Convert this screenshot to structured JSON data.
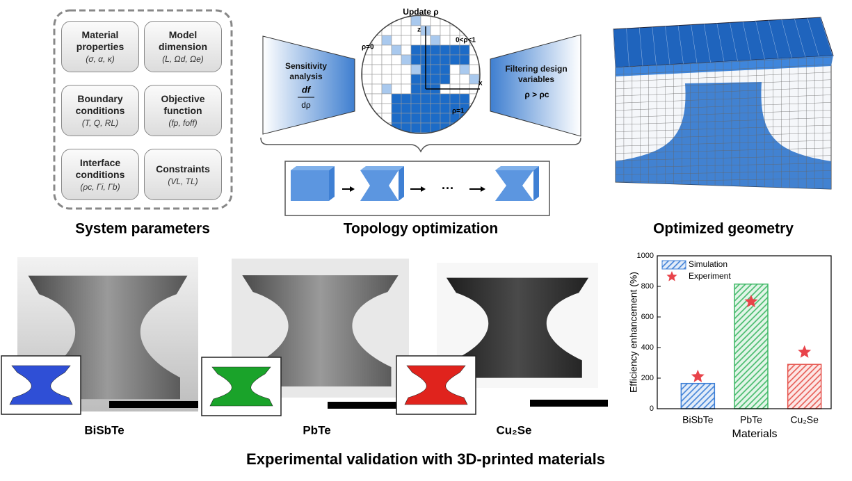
{
  "system_parameters": {
    "title": "System parameters",
    "boxes": [
      {
        "title": "Material properties",
        "vars": "(σ, α, κ)"
      },
      {
        "title": "Model dimension",
        "vars": "(L, Ωd, Ωe)"
      },
      {
        "title": "Boundary conditions",
        "vars": "(T, Q, RL)"
      },
      {
        "title": "Objective function",
        "vars": "(fp, foff)"
      },
      {
        "title": "Interface conditions",
        "vars": "(ρc, Γi, Γb)"
      },
      {
        "title": "Constraints",
        "vars": "(VL, TL)"
      }
    ]
  },
  "topology": {
    "title": "Topology optimization",
    "update": "Update ρ",
    "rho0": "ρ=0",
    "rho_mid": "0<ρ<1",
    "rho1": "ρ=1",
    "axis_z": "z",
    "axis_x": "x",
    "sensitivity": "Sensitivity analysis",
    "df": "df",
    "drho": "dρ",
    "filtering": "Filtering design variables",
    "filter_rule": "ρ > ρc",
    "ellipsis": "···"
  },
  "optimized": {
    "title": "Optimized geometry"
  },
  "validation": {
    "title": "Experimental validation with 3D-printed materials",
    "samples": [
      "BiSbTe",
      "PbTe",
      "Cu₂Se"
    ]
  },
  "chart_data": {
    "type": "bar",
    "xlabel": "Materials",
    "ylabel": "Efficiency enhancement (%)",
    "categories": [
      "BiSbTe",
      "PbTe",
      "Cu₂Se"
    ],
    "series": [
      {
        "name": "Simulation",
        "type": "bar",
        "color": "#3d7fd6",
        "colors": [
          "#3d7fd6",
          "#3fb866",
          "#e6564f"
        ],
        "hatch": true,
        "values": [
          165,
          815,
          290
        ]
      },
      {
        "name": "Experiment",
        "type": "scatter",
        "marker": "star",
        "color": "#e8434a",
        "values": [
          210,
          700,
          370
        ]
      }
    ],
    "ylim": [
      0,
      1000
    ],
    "yticks": [
      0,
      200,
      400,
      600,
      800,
      1000
    ]
  }
}
